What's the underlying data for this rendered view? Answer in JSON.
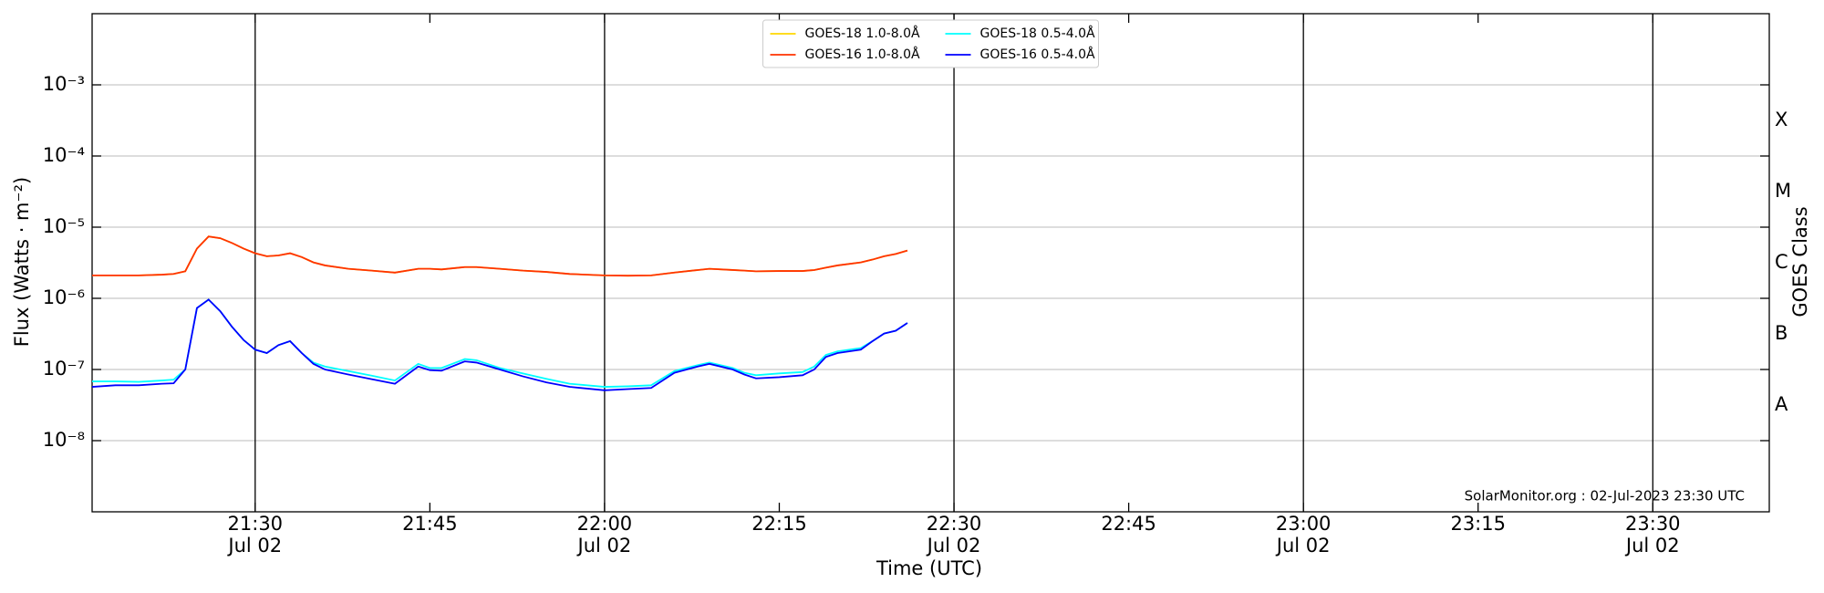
{
  "chart_data": {
    "type": "line",
    "xlabel": "Time (UTC)",
    "ylabel": "Flux (Watts · m⁻²)",
    "y2label": "GOES Class",
    "annotation": "SolarMonitor.org : 02-Jul-2023 23:30 UTC",
    "log_y": true,
    "grid": true,
    "legend": "upper center",
    "xlim": [
      "21:16",
      "23:40"
    ],
    "xticks": [
      "21:30",
      "21:45",
      "22:00",
      "22:15",
      "22:30",
      "22:45",
      "23:00",
      "23:15",
      "23:30"
    ],
    "xtick_dates": [
      "Jul 02",
      null,
      "Jul 02",
      null,
      "Jul 02",
      null,
      "Jul 02",
      null,
      "Jul 02"
    ],
    "ylim": [
      1e-09,
      0.01
    ],
    "yticks": [
      {
        "value": 1e-08,
        "label": "10⁻⁸"
      },
      {
        "value": 1e-07,
        "label": "10⁻⁷"
      },
      {
        "value": 1e-06,
        "label": "10⁻⁶"
      },
      {
        "value": 1e-05,
        "label": "10⁻⁵"
      },
      {
        "value": 0.0001,
        "label": "10⁻⁴"
      },
      {
        "value": 0.001,
        "label": "10⁻³"
      }
    ],
    "y2lim": [
      1e-09,
      0.01
    ],
    "y2ticks": [
      {
        "value": 3.16e-08,
        "label": "A"
      },
      {
        "value": 3.16e-07,
        "label": "B"
      },
      {
        "value": 3.16e-06,
        "label": "C"
      },
      {
        "value": 3.16e-05,
        "label": "M"
      },
      {
        "value": 0.000316,
        "label": "X"
      }
    ],
    "x": [
      "21:16",
      "21:18",
      "21:20",
      "21:22",
      "21:23",
      "21:24",
      "21:25",
      "21:26",
      "21:27",
      "21:28",
      "21:29",
      "21:30",
      "21:31",
      "21:32",
      "21:33",
      "21:34",
      "21:35",
      "21:36",
      "21:38",
      "21:40",
      "21:42",
      "21:44",
      "21:45",
      "21:46",
      "21:48",
      "21:49",
      "21:51",
      "21:53",
      "21:55",
      "21:57",
      "22:00",
      "22:02",
      "22:04",
      "22:06",
      "22:08",
      "22:09",
      "22:11",
      "22:12",
      "22:13",
      "22:15",
      "22:17",
      "22:18",
      "22:19",
      "22:20",
      "22:22",
      "22:23",
      "22:24",
      "22:25",
      "22:26"
    ],
    "series": [
      {
        "name": "GOES-18 1.0-8.0Å",
        "color": "#ffd700",
        "values": [
          2.1e-06,
          2.1e-06,
          2.1e-06,
          2.15e-06,
          2.2e-06,
          2.4e-06,
          5e-06,
          7.4e-06,
          7e-06,
          6e-06,
          5e-06,
          4.3e-06,
          3.9e-06,
          4e-06,
          4.3e-06,
          3.8e-06,
          3.2e-06,
          2.9e-06,
          2.6e-06,
          2.45e-06,
          2.3e-06,
          2.6e-06,
          2.6e-06,
          2.55e-06,
          2.75e-06,
          2.75e-06,
          2.6e-06,
          2.45e-06,
          2.35e-06,
          2.2e-06,
          2.1e-06,
          2.08e-06,
          2.1e-06,
          2.3e-06,
          2.5e-06,
          2.6e-06,
          2.5e-06,
          2.45e-06,
          2.4e-06,
          2.42e-06,
          2.42e-06,
          2.5e-06,
          2.7e-06,
          2.9e-06,
          3.2e-06,
          3.5e-06,
          3.9e-06,
          4.2e-06,
          4.7e-06
        ]
      },
      {
        "name": "GOES-16 1.0-8.0Å",
        "color": "#ff3300",
        "values": [
          2.1e-06,
          2.1e-06,
          2.1e-06,
          2.15e-06,
          2.2e-06,
          2.4e-06,
          5e-06,
          7.4e-06,
          7e-06,
          6e-06,
          5e-06,
          4.3e-06,
          3.9e-06,
          4e-06,
          4.3e-06,
          3.8e-06,
          3.2e-06,
          2.9e-06,
          2.6e-06,
          2.45e-06,
          2.3e-06,
          2.6e-06,
          2.6e-06,
          2.55e-06,
          2.75e-06,
          2.75e-06,
          2.6e-06,
          2.45e-06,
          2.35e-06,
          2.2e-06,
          2.1e-06,
          2.08e-06,
          2.1e-06,
          2.3e-06,
          2.5e-06,
          2.6e-06,
          2.5e-06,
          2.45e-06,
          2.4e-06,
          2.42e-06,
          2.42e-06,
          2.5e-06,
          2.7e-06,
          2.9e-06,
          3.2e-06,
          3.5e-06,
          3.9e-06,
          4.2e-06,
          4.7e-06
        ]
      },
      {
        "name": "GOES-18 0.5-4.0Å",
        "color": "#00ffff",
        "values": [
          6.8e-08,
          6.8e-08,
          6.7e-08,
          7e-08,
          7.2e-08,
          1e-07,
          7.3e-07,
          9.6e-07,
          6.6e-07,
          4e-07,
          2.6e-07,
          1.9e-07,
          1.7e-07,
          2.2e-07,
          2.5e-07,
          1.7e-07,
          1.25e-07,
          1.1e-07,
          9.5e-08,
          8.2e-08,
          7e-08,
          1.2e-07,
          1.05e-07,
          1.05e-07,
          1.4e-07,
          1.35e-07,
          1.05e-07,
          8.8e-08,
          7.4e-08,
          6.3e-08,
          5.7e-08,
          5.8e-08,
          6e-08,
          9.5e-08,
          1.15e-07,
          1.25e-07,
          1.05e-07,
          9e-08,
          8.3e-08,
          8.8e-08,
          9.2e-08,
          1.1e-07,
          1.6e-07,
          1.8e-07,
          2e-07,
          2.5e-07,
          3.2e-07,
          3.5e-07,
          4.5e-07
        ]
      },
      {
        "name": "GOES-16 0.5-4.0Å",
        "color": "#0000ff",
        "values": [
          5.7e-08,
          6e-08,
          6e-08,
          6.3e-08,
          6.4e-08,
          1e-07,
          7.3e-07,
          9.6e-07,
          6.6e-07,
          4e-07,
          2.6e-07,
          1.9e-07,
          1.7e-07,
          2.2e-07,
          2.5e-07,
          1.7e-07,
          1.2e-07,
          1e-07,
          8.5e-08,
          7.3e-08,
          6.3e-08,
          1.1e-07,
          9.8e-08,
          9.6e-08,
          1.3e-07,
          1.25e-07,
          1e-07,
          8e-08,
          6.6e-08,
          5.7e-08,
          5.1e-08,
          5.3e-08,
          5.5e-08,
          9e-08,
          1.1e-07,
          1.2e-07,
          1e-07,
          8.5e-08,
          7.5e-08,
          7.8e-08,
          8.3e-08,
          1e-07,
          1.5e-07,
          1.7e-07,
          1.9e-07,
          2.5e-07,
          3.2e-07,
          3.5e-07,
          4.5e-07
        ]
      }
    ]
  }
}
